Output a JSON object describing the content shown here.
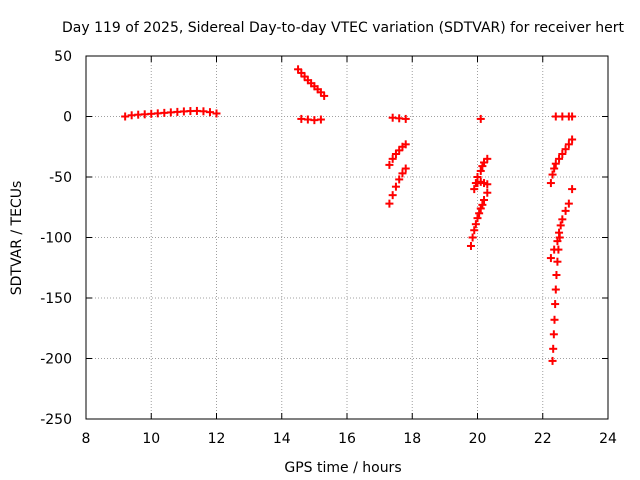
{
  "chart_data": {
    "type": "scatter",
    "title": "Day 119 of 2025, Sidereal Day-to-day VTEC variation (SDTVAR) for receiver hert",
    "xlabel": "GPS time / hours",
    "ylabel": "SDTVAR / TECUs",
    "xlim": [
      8,
      24
    ],
    "ylim": [
      -250,
      50
    ],
    "xticks": [
      8,
      10,
      12,
      14,
      16,
      18,
      20,
      22,
      24
    ],
    "yticks": [
      -250,
      -200,
      -150,
      -100,
      -50,
      0,
      50
    ],
    "grid": true,
    "marker": "+",
    "marker_color": "#ff0000",
    "series": [
      {
        "points": [
          [
            9.2,
            0
          ],
          [
            9.4,
            1
          ],
          [
            9.6,
            1.5
          ],
          [
            9.8,
            1.8
          ],
          [
            10.0,
            2.2
          ],
          [
            10.2,
            2.6
          ],
          [
            10.4,
            3.0
          ],
          [
            10.6,
            3.4
          ],
          [
            10.8,
            3.8
          ],
          [
            11.0,
            4.2
          ],
          [
            11.2,
            4.5
          ],
          [
            11.4,
            4.6
          ],
          [
            11.6,
            4.3
          ],
          [
            11.8,
            3.6
          ],
          [
            12.0,
            2.5
          ],
          [
            14.5,
            39
          ],
          [
            14.6,
            36
          ],
          [
            14.7,
            33
          ],
          [
            14.8,
            30
          ],
          [
            14.9,
            27.5
          ],
          [
            15.0,
            25
          ],
          [
            15.1,
            22.5
          ],
          [
            15.2,
            20
          ],
          [
            15.3,
            17
          ],
          [
            14.6,
            -2
          ],
          [
            14.8,
            -2.5
          ],
          [
            15.0,
            -3
          ],
          [
            15.2,
            -2.5
          ],
          [
            17.4,
            -1
          ],
          [
            17.6,
            -1.5
          ],
          [
            17.8,
            -2
          ],
          [
            17.3,
            -40
          ],
          [
            17.4,
            -35
          ],
          [
            17.5,
            -31
          ],
          [
            17.6,
            -28
          ],
          [
            17.7,
            -25
          ],
          [
            17.8,
            -23
          ],
          [
            17.3,
            -72
          ],
          [
            17.4,
            -65
          ],
          [
            17.5,
            -58
          ],
          [
            17.6,
            -52
          ],
          [
            17.7,
            -47
          ],
          [
            17.8,
            -43
          ],
          [
            20.1,
            -2
          ],
          [
            19.9,
            -60
          ],
          [
            19.95,
            -55
          ],
          [
            20.0,
            -50
          ],
          [
            20.1,
            -45
          ],
          [
            20.15,
            -41
          ],
          [
            20.2,
            -38
          ],
          [
            20.3,
            -35
          ],
          [
            20.0,
            -55
          ],
          [
            20.1,
            -54
          ],
          [
            20.2,
            -55
          ],
          [
            20.3,
            -56
          ],
          [
            19.8,
            -107
          ],
          [
            19.85,
            -100
          ],
          [
            19.9,
            -94
          ],
          [
            19.95,
            -89
          ],
          [
            20.0,
            -84
          ],
          [
            20.05,
            -80
          ],
          [
            20.1,
            -76
          ],
          [
            20.15,
            -73
          ],
          [
            20.2,
            -69
          ],
          [
            20.3,
            -63
          ],
          [
            22.4,
            0
          ],
          [
            22.6,
            0
          ],
          [
            22.8,
            0
          ],
          [
            22.9,
            0
          ],
          [
            22.25,
            -55
          ],
          [
            22.3,
            -48
          ],
          [
            22.35,
            -43
          ],
          [
            22.4,
            -39
          ],
          [
            22.5,
            -35
          ],
          [
            22.6,
            -31
          ],
          [
            22.7,
            -27
          ],
          [
            22.8,
            -23
          ],
          [
            22.9,
            -19
          ],
          [
            22.25,
            -117
          ],
          [
            22.35,
            -110
          ],
          [
            22.45,
            -103
          ],
          [
            22.5,
            -96
          ],
          [
            22.55,
            -90
          ],
          [
            22.6,
            -85
          ],
          [
            22.7,
            -78
          ],
          [
            22.8,
            -72
          ],
          [
            22.9,
            -60
          ],
          [
            22.3,
            -202
          ],
          [
            22.32,
            -192
          ],
          [
            22.34,
            -180
          ],
          [
            22.36,
            -168
          ],
          [
            22.38,
            -155
          ],
          [
            22.4,
            -143
          ],
          [
            22.42,
            -131
          ],
          [
            22.45,
            -120
          ],
          [
            22.48,
            -110
          ],
          [
            22.52,
            -100
          ]
        ]
      }
    ]
  }
}
